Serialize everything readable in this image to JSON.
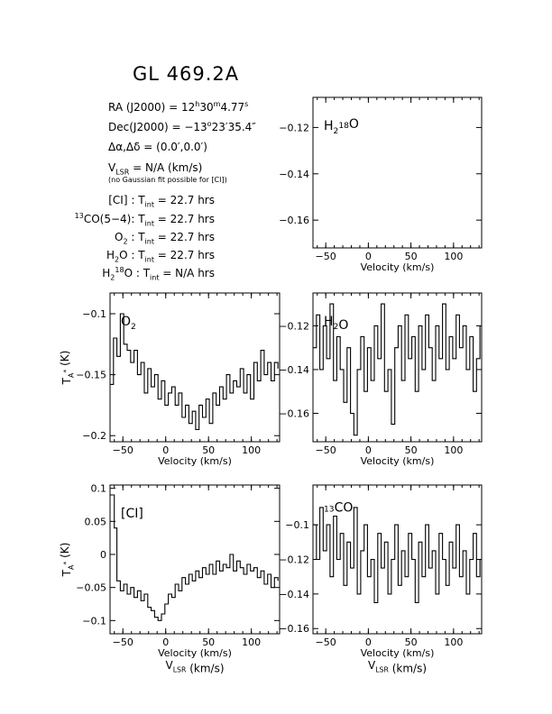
{
  "header": {
    "title": "GL 469.2A",
    "ra": {
      "pre": "RA (J2000) = 12",
      "h": "h",
      "mid": "30",
      "m": "m",
      "post": "4.77",
      "s": "s"
    },
    "dec": {
      "pre": "Dec(J2000) = −13",
      "deg": "o",
      "post": "23′35.4″"
    },
    "offset": "Δα,Δδ = (0.0′,0.0′)",
    "vlsr": {
      "v": "V",
      "sub": "LSR",
      "post": " = N/A (km/s)"
    },
    "note": "(no Gaussian fit possible for [CI])",
    "tint": [
      {
        "pre": "[CI]",
        "sup": "",
        "sub": "",
        "post": " : T",
        "tsub": "int",
        "val": " = 22.7 hrs"
      },
      {
        "pre": "",
        "sup": "13",
        "sub": "",
        "post2": "CO(5−4): T",
        "tsub": "int",
        "val": " = 22.7 hrs"
      },
      {
        "pre": "O",
        "sup": "",
        "sub": "2",
        "post": " : T",
        "tsub": "int",
        "val": " = 22.7 hrs"
      },
      {
        "pre": "H",
        "sup": "",
        "sub": "2",
        "post": "O : T",
        "tsub": "int",
        "val": " = 22.7 hrs"
      },
      {
        "pre": "H",
        "sup": "18",
        "sub": "2",
        "post": "O : T",
        "tsub": "int",
        "val": " = N/A hrs"
      }
    ]
  },
  "chart_data": [
    {
      "type": "line",
      "panel": "top-right",
      "label": {
        "main": "H",
        "sub": "2",
        "sup": "18",
        "tail": "O"
      },
      "xlabel": "Velocity (km/s)",
      "xlim": [
        -65,
        133
      ],
      "ylim": [
        -0.172,
        -0.107
      ],
      "xticks": [
        -50,
        0,
        50,
        100
      ],
      "xticklabels": [
        "−50",
        "0",
        "50",
        "100"
      ],
      "yticks": [
        -0.12,
        -0.14,
        -0.16
      ],
      "yticklabels": [
        "−0.12",
        "−0.14",
        "−0.16"
      ],
      "ylabel": "",
      "series": []
    },
    {
      "type": "line",
      "panel": "middle-left",
      "label": {
        "main": "O",
        "sub": "2",
        "sup": "",
        "tail": ""
      },
      "xlabel": "Velocity (km/s)",
      "ylabel": {
        "main": "T",
        "sub": "A",
        "sup": "*",
        "tail": " (K)"
      },
      "xlim": [
        -65,
        133
      ],
      "ylim": [
        -0.205,
        -0.083
      ],
      "xticks": [
        -50,
        0,
        50,
        100
      ],
      "xticklabels": [
        "−50",
        "0",
        "50",
        "100"
      ],
      "yticks": [
        -0.1,
        -0.15,
        -0.2
      ],
      "yticklabels": [
        "−0.1",
        "−0.15",
        "−0.2"
      ],
      "series": [
        {
          "x": [
            -65,
            -61,
            -57,
            -53,
            -49,
            -45,
            -41,
            -37,
            -33,
            -29,
            -25,
            -21,
            -17,
            -13,
            -9,
            -5,
            -1,
            3,
            7,
            11,
            15,
            19,
            23,
            27,
            31,
            35,
            39,
            43,
            47,
            51,
            55,
            59,
            63,
            67,
            71,
            75,
            79,
            83,
            87,
            91,
            95,
            99,
            103,
            107,
            111,
            115,
            119,
            123,
            127,
            131
          ],
          "y": [
            -0.158,
            -0.12,
            -0.135,
            -0.1,
            -0.125,
            -0.13,
            -0.14,
            -0.13,
            -0.15,
            -0.14,
            -0.165,
            -0.145,
            -0.16,
            -0.15,
            -0.17,
            -0.155,
            -0.175,
            -0.165,
            -0.16,
            -0.175,
            -0.165,
            -0.185,
            -0.175,
            -0.19,
            -0.18,
            -0.195,
            -0.175,
            -0.185,
            -0.17,
            -0.19,
            -0.165,
            -0.175,
            -0.16,
            -0.17,
            -0.15,
            -0.165,
            -0.155,
            -0.16,
            -0.145,
            -0.165,
            -0.15,
            -0.17,
            -0.14,
            -0.155,
            -0.13,
            -0.15,
            -0.14,
            -0.155,
            -0.14,
            -0.145
          ]
        }
      ]
    },
    {
      "type": "line",
      "panel": "middle-right",
      "label": {
        "main": "H",
        "sub": "2",
        "sup": "",
        "tail": "O"
      },
      "xlabel": "Velocity (km/s)",
      "ylabel": "",
      "xlim": [
        -65,
        133
      ],
      "ylim": [
        -0.173,
        -0.105
      ],
      "xticks": [
        -50,
        0,
        50,
        100
      ],
      "xticklabels": [
        "−50",
        "0",
        "50",
        "100"
      ],
      "yticks": [
        -0.12,
        -0.14,
        -0.16
      ],
      "yticklabels": [
        "−0.12",
        "−0.14",
        "−0.16"
      ],
      "series": [
        {
          "x": [
            -65,
            -61,
            -57,
            -53,
            -49,
            -45,
            -41,
            -37,
            -33,
            -29,
            -25,
            -21,
            -17,
            -13,
            -9,
            -5,
            -1,
            3,
            7,
            11,
            15,
            19,
            23,
            27,
            31,
            35,
            39,
            43,
            47,
            51,
            55,
            59,
            63,
            67,
            71,
            75,
            79,
            83,
            87,
            91,
            95,
            99,
            103,
            107,
            111,
            115,
            119,
            123,
            127,
            131
          ],
          "y": [
            -0.13,
            -0.115,
            -0.14,
            -0.12,
            -0.135,
            -0.11,
            -0.145,
            -0.125,
            -0.14,
            -0.155,
            -0.13,
            -0.16,
            -0.17,
            -0.14,
            -0.125,
            -0.15,
            -0.13,
            -0.145,
            -0.12,
            -0.135,
            -0.11,
            -0.15,
            -0.14,
            -0.165,
            -0.13,
            -0.12,
            -0.145,
            -0.115,
            -0.135,
            -0.125,
            -0.15,
            -0.12,
            -0.14,
            -0.115,
            -0.13,
            -0.145,
            -0.12,
            -0.135,
            -0.11,
            -0.14,
            -0.125,
            -0.135,
            -0.115,
            -0.13,
            -0.12,
            -0.14,
            -0.125,
            -0.15,
            -0.135,
            -0.12
          ]
        }
      ]
    },
    {
      "type": "line",
      "panel": "bottom-left",
      "label": {
        "main": "[CI]",
        "sub": "",
        "sup": "",
        "tail": ""
      },
      "xlabel": "Velocity (km/s)",
      "xlabel2": {
        "v": "V",
        "sub": "LSR",
        "tail": " (km/s)"
      },
      "ylabel": {
        "main": "T",
        "sub": "A",
        "sup": "*",
        "tail": " (K)"
      },
      "xlim": [
        -65,
        133
      ],
      "ylim": [
        -0.12,
        0.105
      ],
      "xticks": [
        -50,
        0,
        50,
        100
      ],
      "xticklabels": [
        "−50",
        "0",
        "50",
        "100"
      ],
      "yticks": [
        0.1,
        0.05,
        0,
        -0.05,
        -0.1
      ],
      "yticklabels": [
        "0.1",
        "0.05",
        "0",
        "−0.05",
        "−0.1"
      ],
      "series": [
        {
          "x": [
            -65,
            -62,
            -60,
            -57,
            -53,
            -49,
            -45,
            -41,
            -37,
            -33,
            -29,
            -25,
            -21,
            -17,
            -13,
            -9,
            -5,
            -1,
            3,
            7,
            11,
            15,
            19,
            23,
            27,
            31,
            35,
            39,
            43,
            47,
            51,
            55,
            59,
            63,
            67,
            71,
            75,
            79,
            83,
            87,
            91,
            95,
            99,
            103,
            107,
            111,
            115,
            119,
            123,
            127,
            131
          ],
          "y": [
            0.09,
            0.09,
            0.04,
            -0.04,
            -0.055,
            -0.045,
            -0.06,
            -0.05,
            -0.065,
            -0.055,
            -0.07,
            -0.06,
            -0.08,
            -0.085,
            -0.095,
            -0.1,
            -0.09,
            -0.075,
            -0.06,
            -0.065,
            -0.045,
            -0.055,
            -0.035,
            -0.045,
            -0.03,
            -0.04,
            -0.025,
            -0.035,
            -0.02,
            -0.03,
            -0.015,
            -0.03,
            -0.01,
            -0.025,
            -0.015,
            -0.02,
            0.0,
            -0.025,
            -0.01,
            -0.02,
            -0.03,
            -0.015,
            -0.025,
            -0.02,
            -0.035,
            -0.025,
            -0.045,
            -0.03,
            -0.05,
            -0.035,
            -0.04
          ]
        }
      ]
    },
    {
      "type": "line",
      "panel": "bottom-right",
      "label": {
        "main": "",
        "sub": "",
        "sup": "13",
        "tail": "CO"
      },
      "xlabel": "Velocity (km/s)",
      "xlabel2": {
        "v": "V",
        "sub": "LSR",
        "tail": " (km/s)"
      },
      "ylabel": "",
      "xlim": [
        -65,
        133
      ],
      "ylim": [
        -0.163,
        -0.077
      ],
      "xticks": [
        -50,
        0,
        50,
        100
      ],
      "xticklabels": [
        "−50",
        "0",
        "50",
        "100"
      ],
      "yticks": [
        -0.1,
        -0.12,
        -0.14,
        -0.16
      ],
      "yticklabels": [
        "−0.1",
        "−0.12",
        "−0.14",
        "−0.16"
      ],
      "series": [
        {
          "x": [
            -65,
            -61,
            -57,
            -53,
            -49,
            -45,
            -41,
            -37,
            -33,
            -29,
            -25,
            -21,
            -17,
            -13,
            -9,
            -5,
            -1,
            3,
            7,
            11,
            15,
            19,
            23,
            27,
            31,
            35,
            39,
            43,
            47,
            51,
            55,
            59,
            63,
            67,
            71,
            75,
            79,
            83,
            87,
            91,
            95,
            99,
            103,
            107,
            111,
            115,
            119,
            123,
            127,
            131
          ],
          "y": [
            -0.1,
            -0.12,
            -0.09,
            -0.115,
            -0.1,
            -0.13,
            -0.095,
            -0.12,
            -0.105,
            -0.135,
            -0.11,
            -0.125,
            -0.09,
            -0.14,
            -0.115,
            -0.1,
            -0.13,
            -0.12,
            -0.145,
            -0.105,
            -0.125,
            -0.11,
            -0.14,
            -0.12,
            -0.1,
            -0.135,
            -0.115,
            -0.13,
            -0.105,
            -0.12,
            -0.145,
            -0.11,
            -0.13,
            -0.1,
            -0.125,
            -0.115,
            -0.14,
            -0.105,
            -0.12,
            -0.135,
            -0.11,
            -0.125,
            -0.1,
            -0.13,
            -0.115,
            -0.14,
            -0.12,
            -0.105,
            -0.13,
            -0.12
          ]
        }
      ]
    }
  ]
}
